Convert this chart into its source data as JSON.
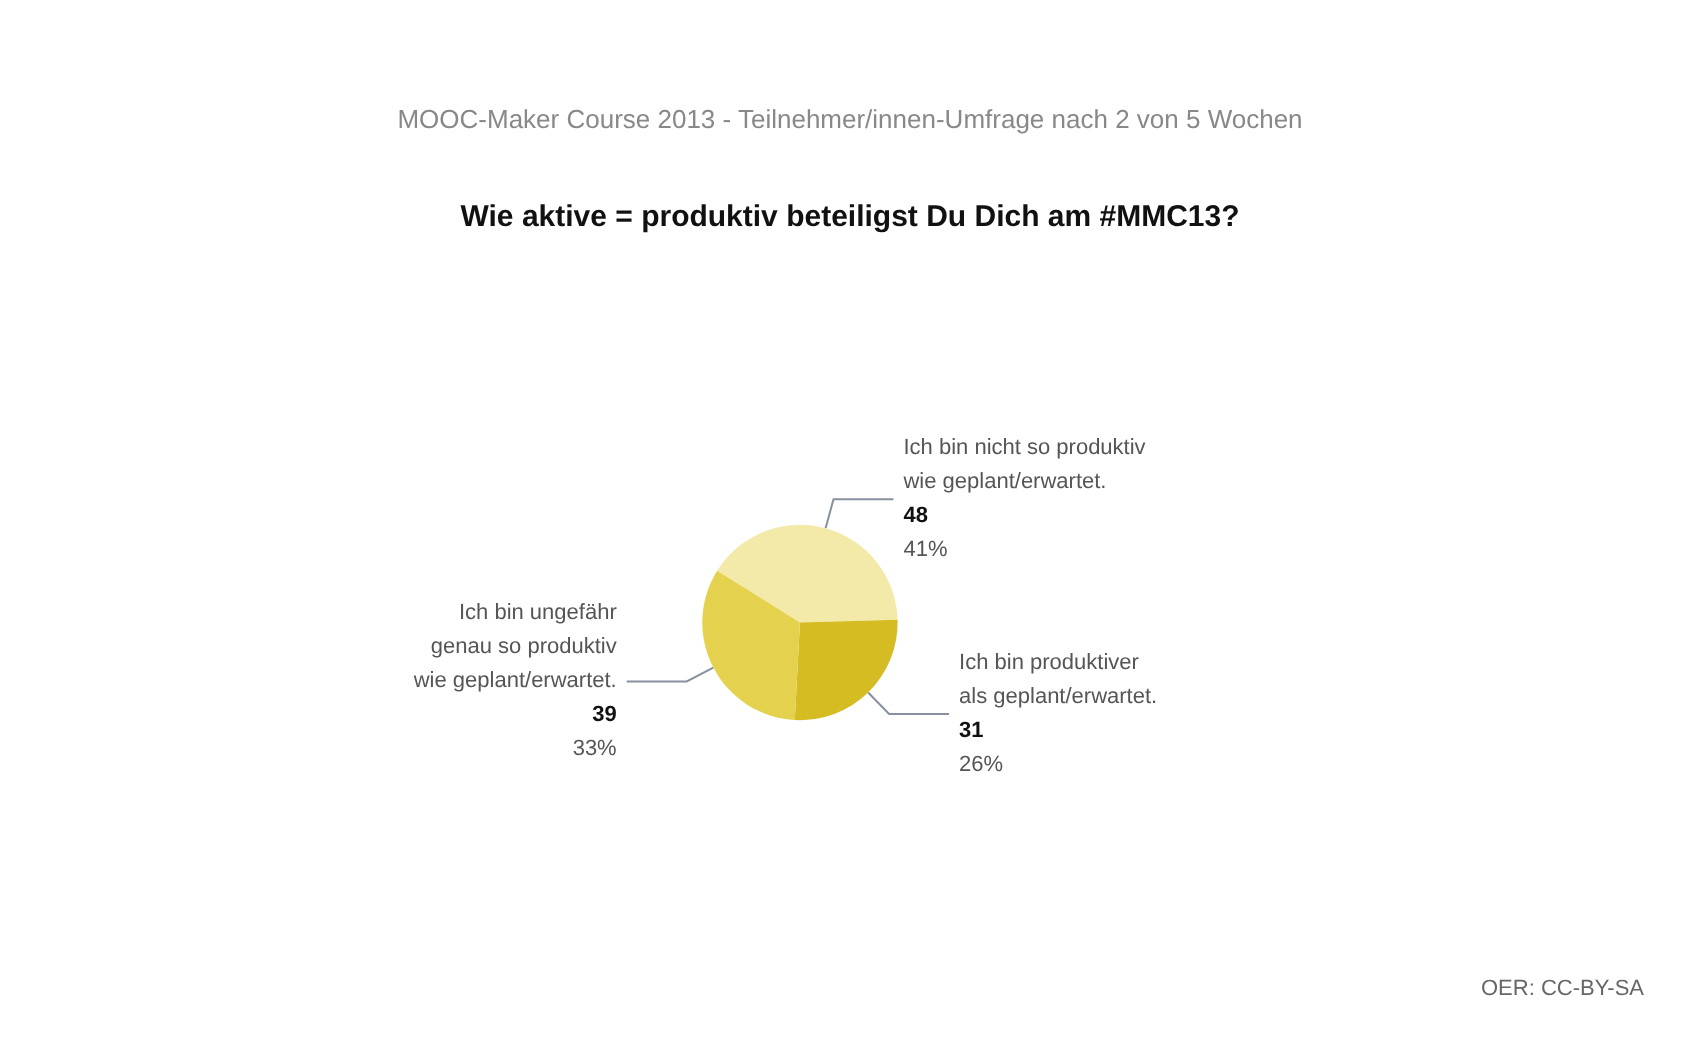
{
  "chart_data": {
    "type": "pie",
    "title": "Wie aktive = produktiv beteiligst Du Dich am #MMC13?",
    "subtitle": "MOOC-Maker Course 2013 - Teilnehmer/innen-Umfrage nach 2 von 5 Wochen",
    "categories": [
      "Ich bin nicht so produktiv\nwie geplant/erwartet.",
      "Ich bin produktiver\nals geplant/erwartet.",
      "Ich bin ungefähr\ngenau so produktiv\nwie geplant/erwartet."
    ],
    "values": [
      48,
      31,
      39
    ],
    "value_labels": [
      "48\n41%",
      "31\n26%",
      "39\n33%"
    ],
    "colors": [
      "#f3eaa9",
      "#d4bc22",
      "#e4d24e"
    ],
    "annotations": [
      "OER: CC-BY-SA"
    ],
    "legend": false
  }
}
